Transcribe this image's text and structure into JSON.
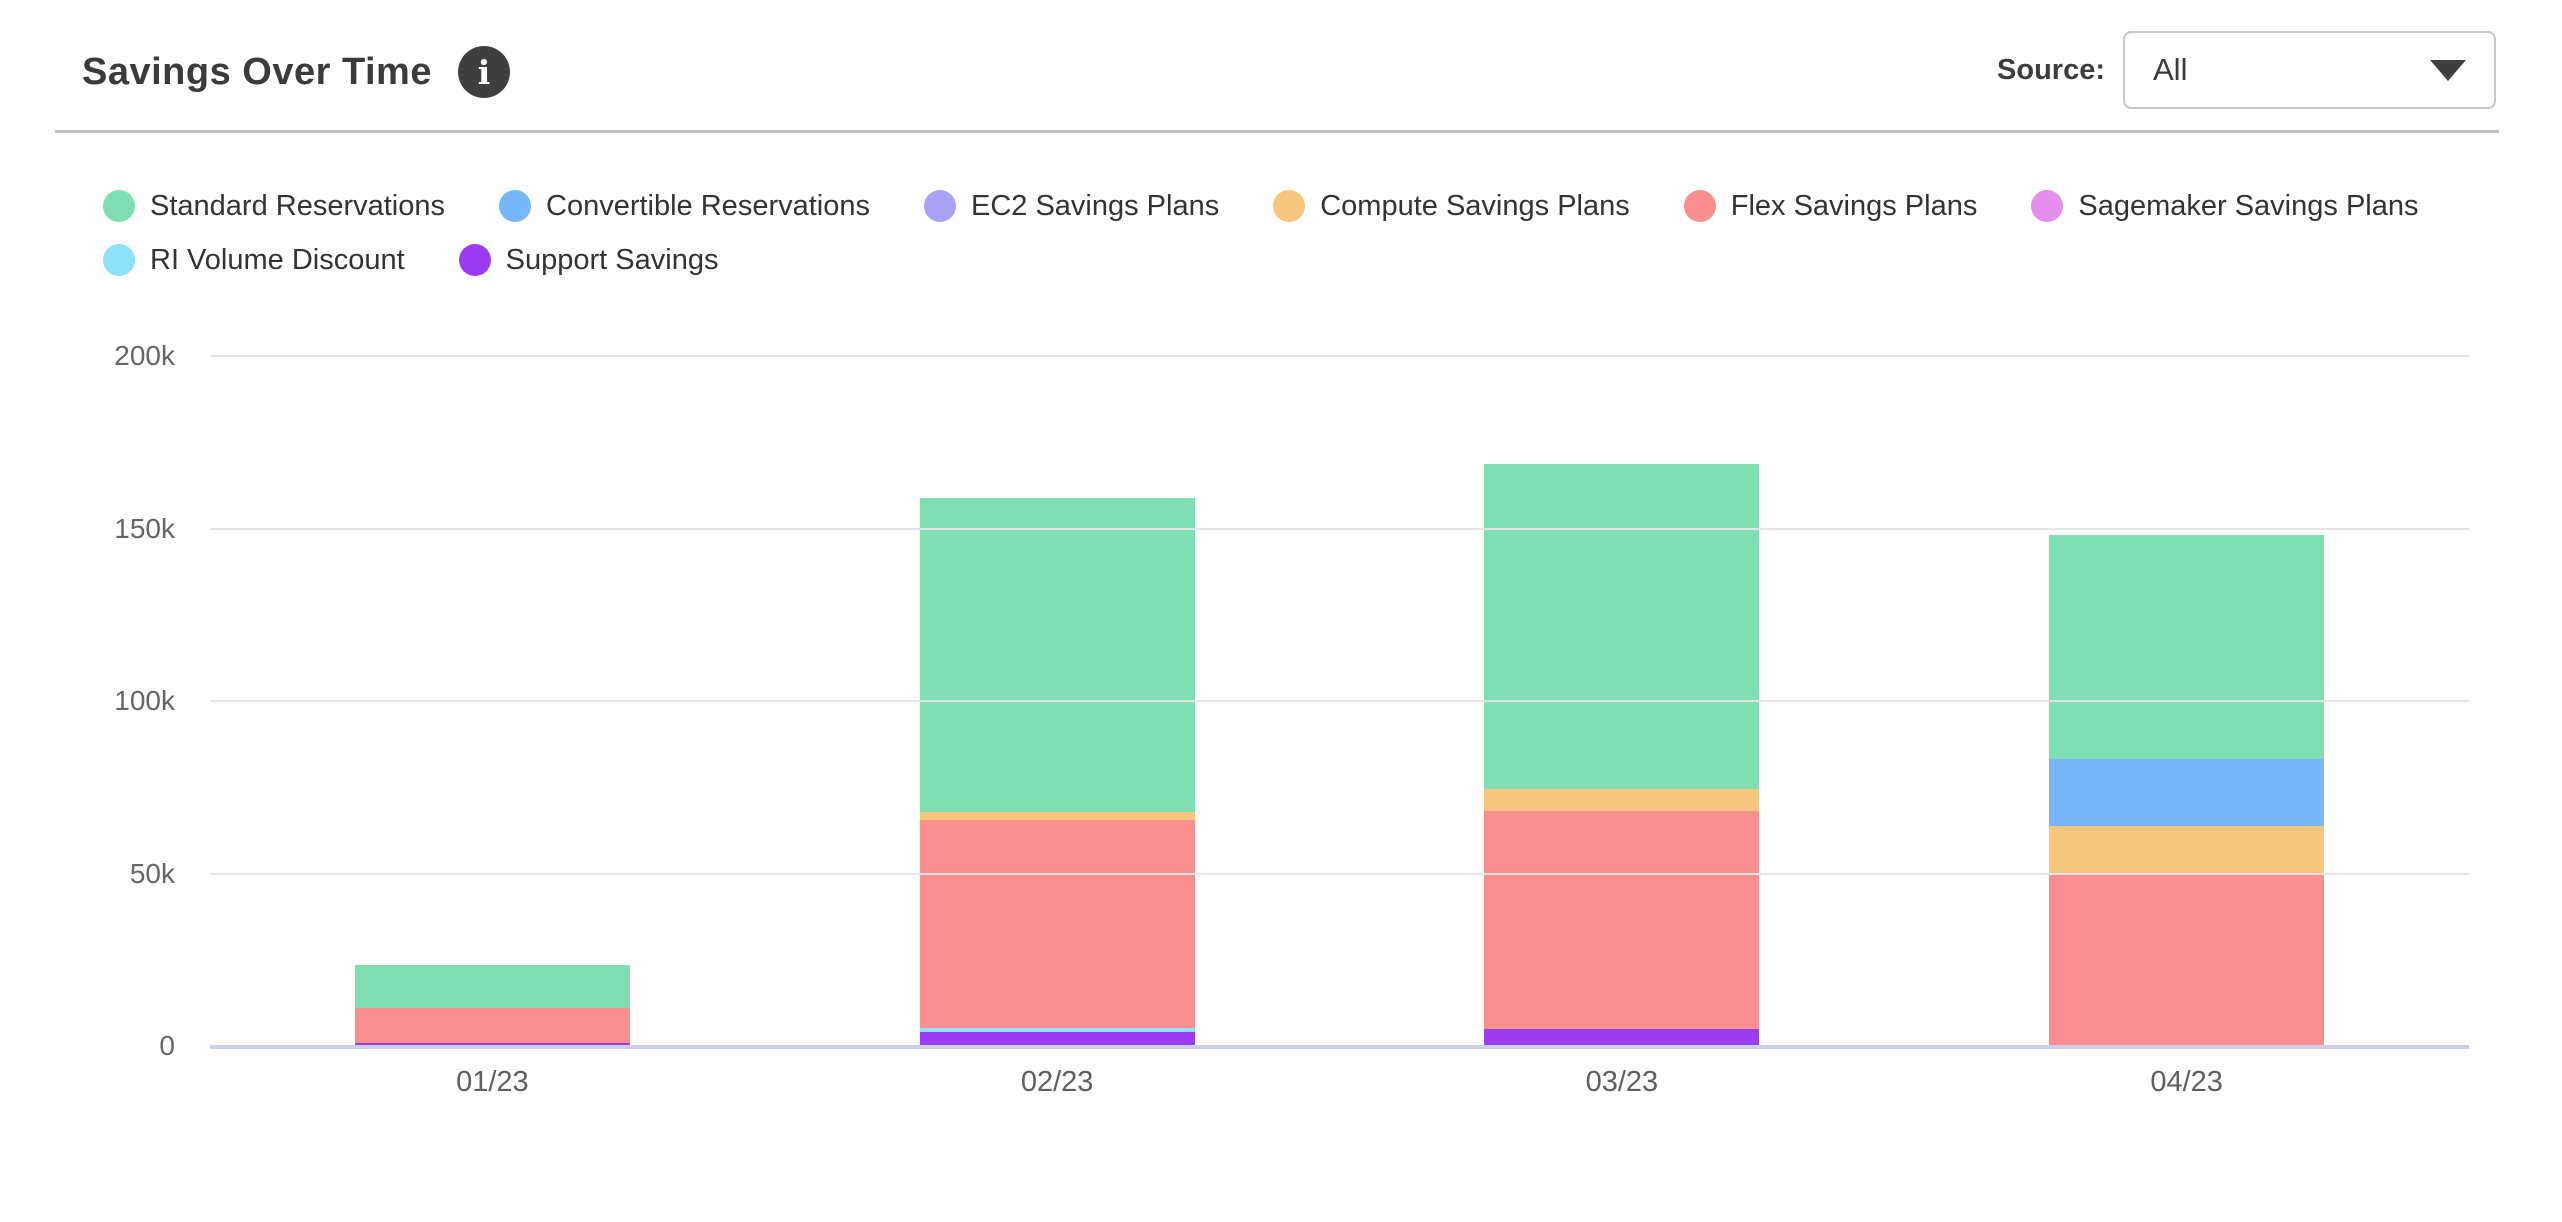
{
  "header": {
    "title": "Savings Over Time",
    "info_icon": "i",
    "source_label": "Source:",
    "source_value": "All"
  },
  "colors": {
    "accent_baseline": "#cbd1ea",
    "gridline": "#e4e4e4",
    "divider": "#c1c1c1",
    "title_text": "#3b3b3b",
    "axis_text": "#666666"
  },
  "chart_data": {
    "type": "bar",
    "stacked": true,
    "title": "Savings Over Time",
    "categories": [
      "01/23",
      "02/23",
      "03/23",
      "04/23"
    ],
    "series": [
      {
        "name": "Support Savings",
        "color": "#9b3bf2",
        "values": [
          1000,
          4200,
          4900,
          0
        ]
      },
      {
        "name": "RI Volume Discount",
        "color": "#8ee1f6",
        "values": [
          0,
          1000,
          0,
          0
        ]
      },
      {
        "name": "Sagemaker Savings Plans",
        "color": "#e48fec",
        "values": [
          0,
          0,
          0,
          0
        ]
      },
      {
        "name": "Flex Savings Plans",
        "color": "#fb8e8e",
        "values": [
          10000,
          60300,
          63100,
          49900
        ]
      },
      {
        "name": "Compute Savings Plans",
        "color": "#f7c67e",
        "values": [
          0,
          2300,
          6400,
          13800
        ]
      },
      {
        "name": "EC2 Savings Plans",
        "color": "#a8a2f2",
        "values": [
          0,
          0,
          0,
          0
        ]
      },
      {
        "name": "Convertible Reservations",
        "color": "#77b7fa",
        "values": [
          0,
          0,
          0,
          19500
        ]
      },
      {
        "name": "Standard Reservations",
        "color": "#7fdfb2",
        "values": [
          12400,
          91200,
          94200,
          64800
        ]
      }
    ],
    "legend_order": [
      "Standard Reservations",
      "Convertible Reservations",
      "EC2 Savings Plans",
      "Compute Savings Plans",
      "Flex Savings Plans",
      "Sagemaker Savings Plans",
      "RI Volume Discount",
      "Support Savings"
    ],
    "ylim": [
      0,
      200000
    ],
    "yticks": [
      {
        "label": "200k",
        "value": 200000
      },
      {
        "label": "150k",
        "value": 150000
      },
      {
        "label": "100k",
        "value": 100000
      },
      {
        "label": "50k",
        "value": 50000
      },
      {
        "label": "0",
        "value": 0
      }
    ],
    "grid": "horizontal",
    "legend_position": "top-left"
  }
}
